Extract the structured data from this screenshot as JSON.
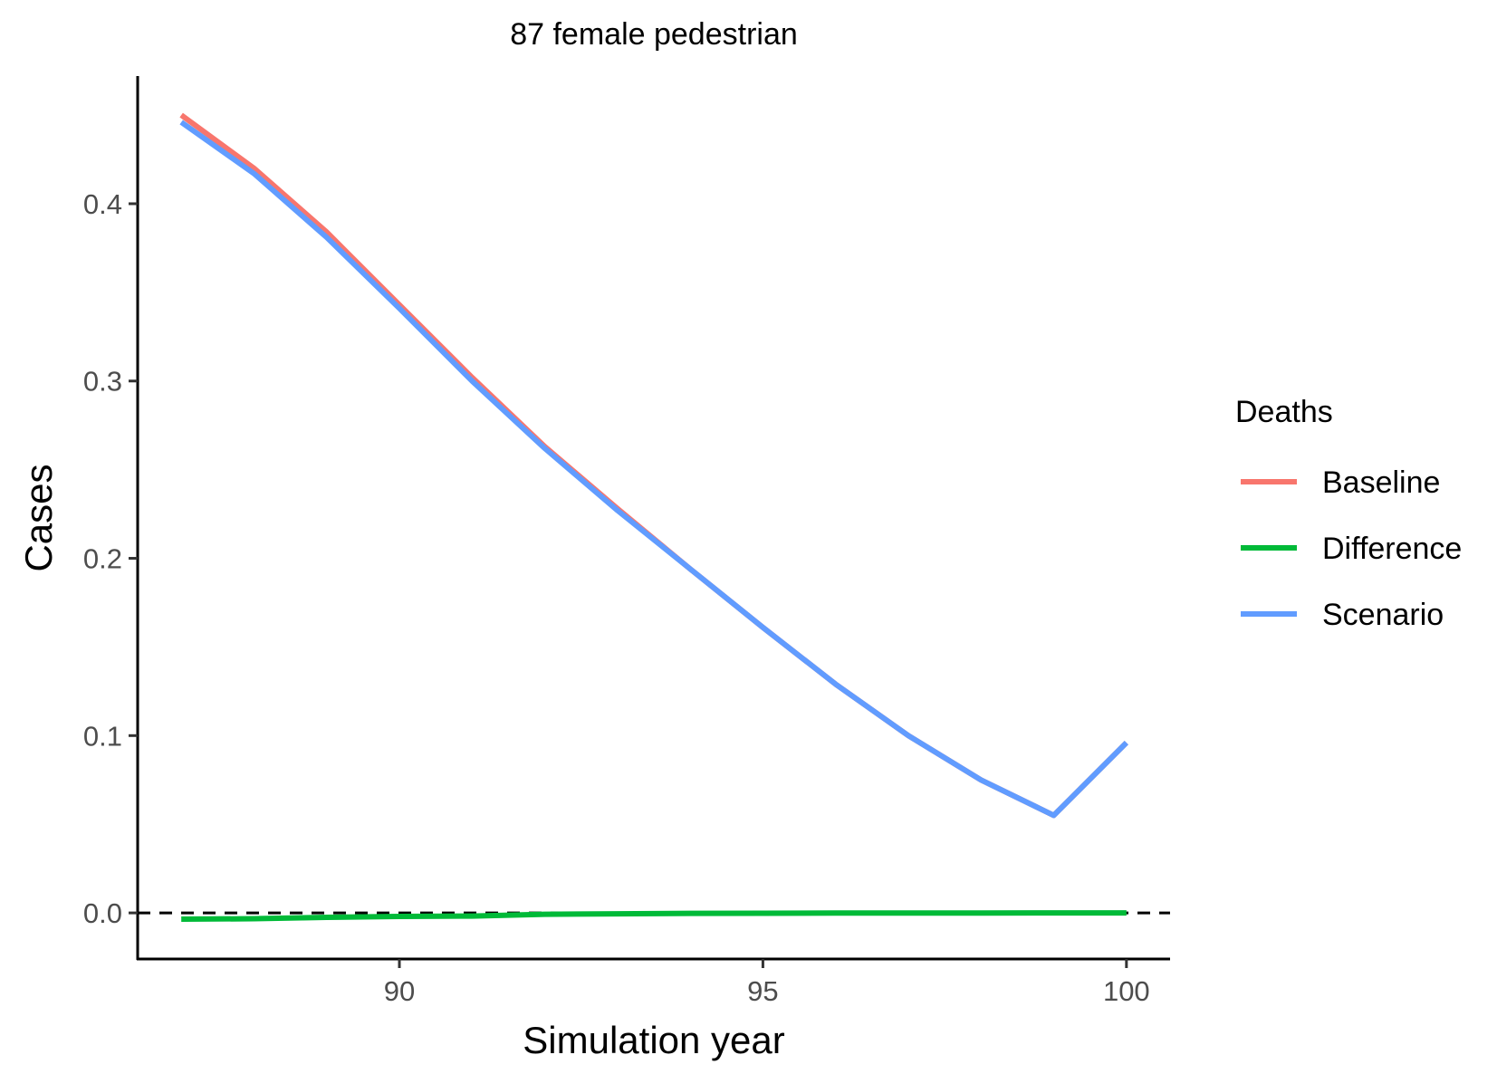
{
  "chart_data": {
    "type": "line",
    "title": "87 female pedestrian",
    "xlabel": "Simulation year",
    "ylabel": "Cases",
    "xlim": [
      86.4,
      100.6
    ],
    "ylim": [
      -0.026,
      0.472
    ],
    "xticks": [
      90,
      95,
      100
    ],
    "yticks": [
      0.0,
      0.1,
      0.2,
      0.3,
      0.4
    ],
    "ytick_labels": [
      "0.0",
      "0.1",
      "0.2",
      "0.3",
      "0.4"
    ],
    "xtick_labels": [
      "90",
      "95",
      "100"
    ],
    "hline": {
      "y": 0,
      "style": "dashed",
      "color": "#000000"
    },
    "grid": false,
    "legend": {
      "title": "Deaths",
      "position": "right"
    },
    "x": [
      87,
      88,
      89,
      90,
      91,
      92,
      93,
      94,
      95,
      96,
      97,
      98,
      99,
      100
    ],
    "series": [
      {
        "name": "Baseline",
        "color": "#F8766D",
        "values": [
          0.45,
          0.42,
          0.384,
          0.343,
          0.302,
          0.263,
          0.228,
          0.194,
          0.161,
          0.129,
          0.1,
          0.075,
          0.055,
          0.096
        ]
      },
      {
        "name": "Difference",
        "color": "#00BA38",
        "values": [
          -0.0035,
          -0.0033,
          -0.0025,
          -0.002,
          -0.0018,
          -0.0008,
          -0.0005,
          -0.0003,
          -0.0002,
          -0.0001,
          -0.0001,
          -0.0001,
          0.0,
          0.0
        ]
      },
      {
        "name": "Scenario",
        "color": "#619CFF",
        "values": [
          0.446,
          0.417,
          0.381,
          0.341,
          0.3,
          0.262,
          0.227,
          0.194,
          0.161,
          0.129,
          0.1,
          0.075,
          0.055,
          0.096
        ]
      }
    ]
  }
}
